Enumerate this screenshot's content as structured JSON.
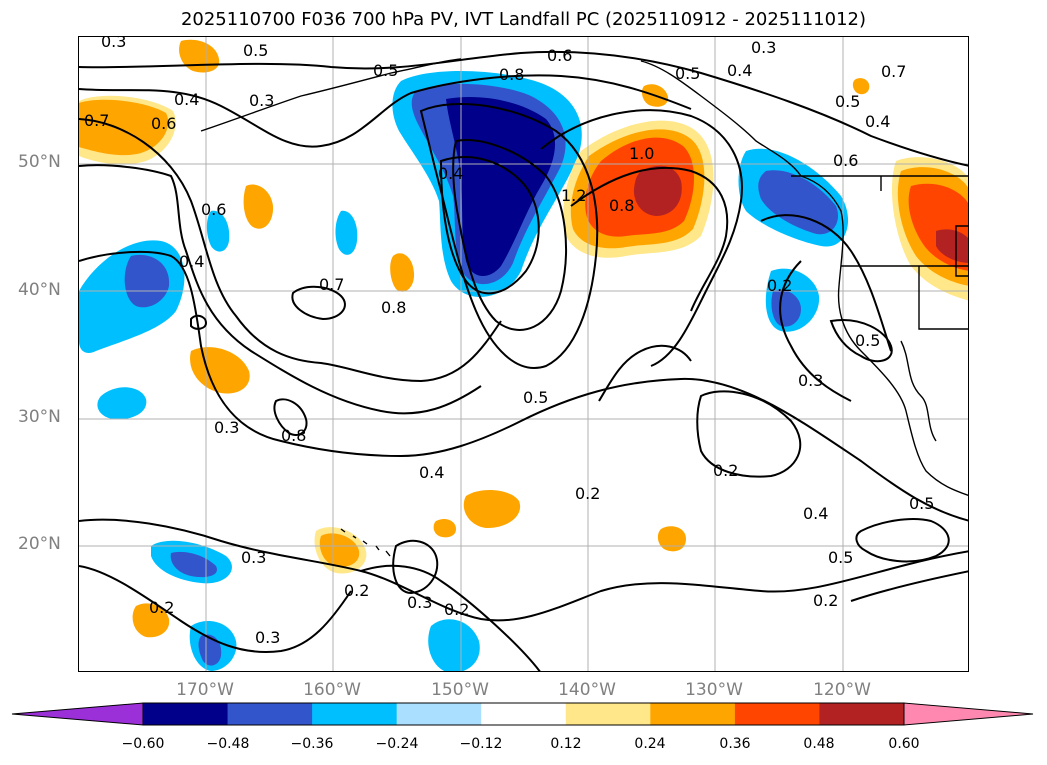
{
  "title": "2025110700 F036 700 hPa PV, IVT Landfall PC (2025110912 - 2025111012)",
  "lat_labels": [
    "50°N",
    "40°N",
    "30°N",
    "20°N"
  ],
  "lon_labels": [
    "170°W",
    "160°W",
    "150°W",
    "140°W",
    "130°W",
    "120°W"
  ],
  "colorbar": {
    "ticks": [
      "−0.60",
      "−0.48",
      "−0.36",
      "−0.24",
      "−0.12",
      "0.12",
      "0.24",
      "0.36",
      "0.48",
      "0.60"
    ],
    "colors": [
      "#9b30d9",
      "#00008b",
      "#3355cc",
      "#00bfff",
      "#aadfff",
      "#ffffff",
      "#ffe78a",
      "#ffa500",
      "#ff4500",
      "#b22222",
      "#ff88b0"
    ]
  },
  "contour_labels": [
    "0.3",
    "0.5",
    "0.6",
    "0.3",
    "0.4",
    "0.8",
    "0.5",
    "0.4",
    "0.6",
    "0.5",
    "0.7",
    "0.7",
    "0.4",
    "0.3",
    "0.6",
    "0.4",
    "1.2",
    "0.8",
    "1.0",
    "0.6",
    "0.5",
    "0.4",
    "0.7",
    "0.8",
    "0.2",
    "0.5",
    "0.3",
    "0.8",
    "0.3",
    "0.5",
    "0.4",
    "0.2",
    "0.2",
    "0.4",
    "0.5",
    "0.5",
    "0.3",
    "0.2",
    "0.3",
    "0.2",
    "0.2",
    "0.3",
    "0.2"
  ],
  "map": {
    "lat_range": [
      10,
      60
    ],
    "lon_range": [
      -180,
      -110
    ],
    "contour_color": "#000000",
    "gridline_color": "#b0b0b0"
  }
}
